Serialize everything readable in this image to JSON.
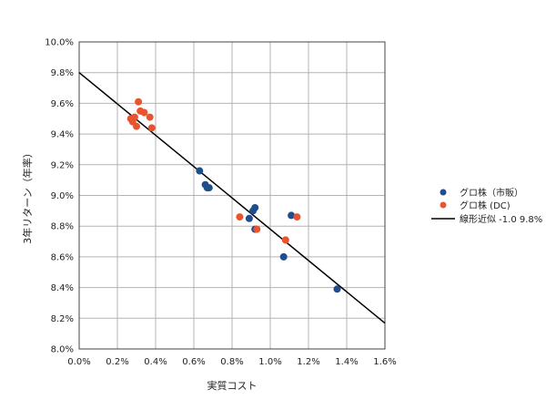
{
  "chart_data": {
    "type": "scatter",
    "xlabel": "実質コスト",
    "ylabel": "3年リターン（年率）",
    "xlim": [
      0.0,
      1.6
    ],
    "ylim": [
      8.0,
      10.0
    ],
    "x_ticks": [
      "0.0%",
      "0.2%",
      "0.4%",
      "0.6%",
      "0.8%",
      "1.0%",
      "1.2%",
      "1.4%",
      "1.6%"
    ],
    "y_ticks": [
      "10.0%",
      "9.8%",
      "9.6%",
      "9.4%",
      "9.2%",
      "9.0%",
      "8.8%",
      "8.6%",
      "8.4%",
      "8.2%",
      "8.0%"
    ],
    "grid": true,
    "legend_position": "right",
    "series": [
      {
        "name": "グロ株（市販）",
        "color": "#1f4e8c",
        "points": [
          {
            "x": 0.63,
            "y": 9.16
          },
          {
            "x": 0.66,
            "y": 9.07
          },
          {
            "x": 0.67,
            "y": 9.05
          },
          {
            "x": 0.68,
            "y": 9.05
          },
          {
            "x": 0.89,
            "y": 8.85
          },
          {
            "x": 0.91,
            "y": 8.9
          },
          {
            "x": 0.92,
            "y": 8.92
          },
          {
            "x": 0.92,
            "y": 8.78
          },
          {
            "x": 1.07,
            "y": 8.6
          },
          {
            "x": 1.11,
            "y": 8.87
          },
          {
            "x": 1.35,
            "y": 8.39
          }
        ]
      },
      {
        "name": "グロ株 (DC)",
        "color": "#e8542e",
        "points": [
          {
            "x": 0.27,
            "y": 9.5
          },
          {
            "x": 0.28,
            "y": 9.48
          },
          {
            "x": 0.29,
            "y": 9.51
          },
          {
            "x": 0.3,
            "y": 9.45
          },
          {
            "x": 0.31,
            "y": 9.61
          },
          {
            "x": 0.32,
            "y": 9.55
          },
          {
            "x": 0.34,
            "y": 9.54
          },
          {
            "x": 0.37,
            "y": 9.51
          },
          {
            "x": 0.38,
            "y": 9.44
          },
          {
            "x": 0.84,
            "y": 8.86
          },
          {
            "x": 0.93,
            "y": 8.78
          },
          {
            "x": 1.08,
            "y": 8.71
          },
          {
            "x": 1.14,
            "y": 8.86
          }
        ]
      }
    ],
    "trendline": {
      "name": "線形近似  -1.0 9.8%",
      "color": "#000000",
      "slope": -1.02,
      "intercept": 9.8
    }
  }
}
